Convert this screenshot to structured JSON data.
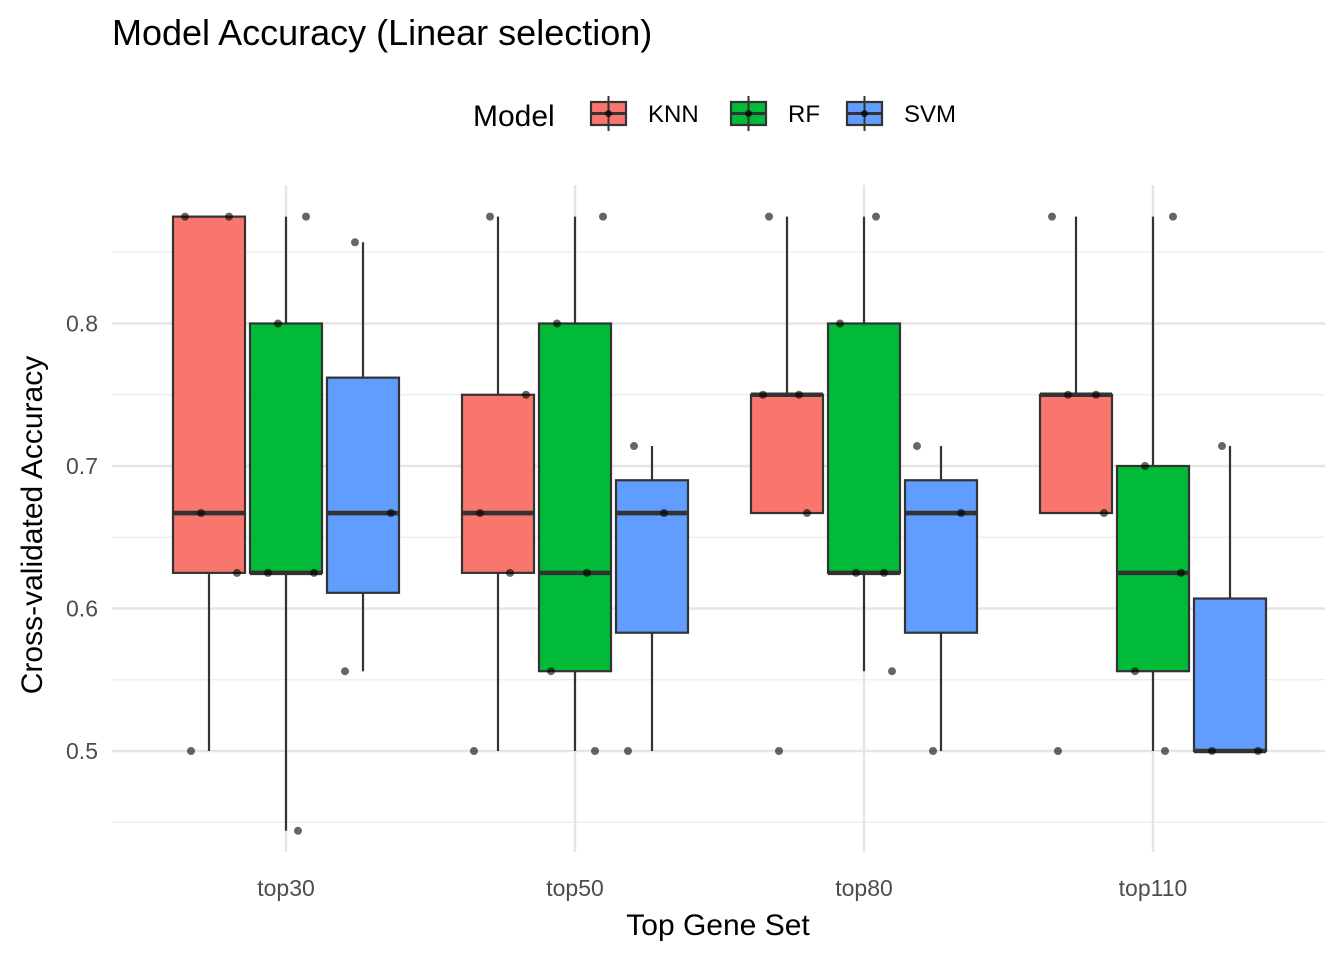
{
  "chart_data": {
    "type": "boxplot",
    "title": "Model Accuracy (Linear selection)",
    "xlabel": "Top Gene Set",
    "ylabel": "Cross-validated Accuracy",
    "ylim": [
      0.43,
      0.9
    ],
    "y_ticks": [
      0.5,
      0.6,
      0.7,
      0.8
    ],
    "y_tick_labels": [
      "0.5",
      "0.6",
      "0.7",
      "0.8"
    ],
    "grid": true,
    "legend": {
      "title": "Model",
      "position": "top"
    },
    "categories": [
      "top30",
      "top50",
      "top80",
      "top110"
    ],
    "series": [
      {
        "name": "KNN",
        "color": "#F8766D",
        "boxes": [
          {
            "min": 0.5,
            "q1": 0.625,
            "median": 0.667,
            "q3": 0.875,
            "max": 0.875,
            "points": [
              0.875,
              0.875,
              0.667,
              0.625,
              0.5
            ]
          },
          {
            "min": 0.5,
            "q1": 0.625,
            "median": 0.667,
            "q3": 0.75,
            "max": 0.875,
            "points": [
              0.875,
              0.75,
              0.667,
              0.625,
              0.5
            ]
          },
          {
            "min": 0.667,
            "q1": 0.667,
            "median": 0.75,
            "q3": 0.75,
            "max": 0.875,
            "points": [
              0.875,
              0.75,
              0.75,
              0.667,
              0.5
            ]
          },
          {
            "min": 0.667,
            "q1": 0.667,
            "median": 0.75,
            "q3": 0.75,
            "max": 0.875,
            "points": [
              0.875,
              0.75,
              0.75,
              0.667,
              0.5
            ]
          }
        ]
      },
      {
        "name": "RF",
        "color": "#00BA38",
        "boxes": [
          {
            "min": 0.444,
            "q1": 0.625,
            "median": 0.625,
            "q3": 0.8,
            "max": 0.875,
            "points": [
              0.875,
              0.8,
              0.625,
              0.625,
              0.444
            ]
          },
          {
            "min": 0.5,
            "q1": 0.556,
            "median": 0.625,
            "q3": 0.8,
            "max": 0.875,
            "points": [
              0.875,
              0.8,
              0.625,
              0.556,
              0.5
            ]
          },
          {
            "min": 0.556,
            "q1": 0.625,
            "median": 0.625,
            "q3": 0.8,
            "max": 0.875,
            "points": [
              0.875,
              0.8,
              0.625,
              0.625,
              0.556
            ]
          },
          {
            "min": 0.5,
            "q1": 0.556,
            "median": 0.625,
            "q3": 0.7,
            "max": 0.875,
            "points": [
              0.875,
              0.7,
              0.625,
              0.556,
              0.5
            ]
          }
        ]
      },
      {
        "name": "SVM",
        "color": "#619CFF",
        "boxes": [
          {
            "min": 0.556,
            "q1": 0.611,
            "median": 0.667,
            "q3": 0.762,
            "max": 0.857,
            "points": [
              0.857,
              0.667,
              0.556
            ]
          },
          {
            "min": 0.5,
            "q1": 0.583,
            "median": 0.667,
            "q3": 0.69,
            "max": 0.714,
            "points": [
              0.714,
              0.667,
              0.5
            ]
          },
          {
            "min": 0.5,
            "q1": 0.583,
            "median": 0.667,
            "q3": 0.69,
            "max": 0.714,
            "points": [
              0.714,
              0.667,
              0.5
            ]
          },
          {
            "min": 0.5,
            "q1": 0.5,
            "median": 0.5,
            "q3": 0.607,
            "max": 0.714,
            "points": [
              0.714,
              0.5,
              0.5
            ]
          }
        ]
      }
    ]
  }
}
